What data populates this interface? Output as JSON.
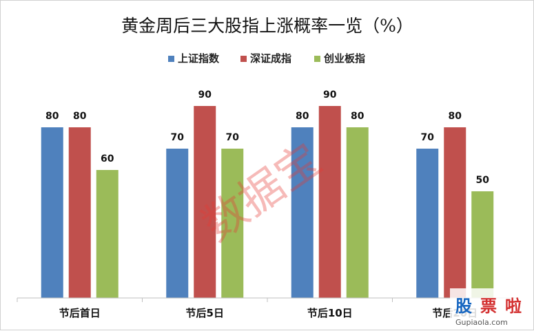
{
  "chart_data": {
    "type": "bar",
    "title": "黄金周后三大股指上涨概率一览（%）",
    "categories": [
      "节后首日",
      "节后5日",
      "节后10日",
      "节后20日"
    ],
    "series": [
      {
        "name": "上证指数",
        "color": "#4f81bd",
        "values": [
          80,
          70,
          80,
          70
        ]
      },
      {
        "name": "深证成指",
        "color": "#c0504d",
        "values": [
          80,
          90,
          90,
          80
        ]
      },
      {
        "name": "创业板指",
        "color": "#9bbb59",
        "values": [
          60,
          70,
          80,
          50
        ]
      }
    ],
    "ylim": [
      0,
      100
    ],
    "grid": false,
    "legend_position": "top-center",
    "data_labels": true
  },
  "watermark": {
    "text": "数据宝",
    "color": "#e53935"
  },
  "logo": {
    "text": "股票啦",
    "url_text": "Gupiaola.com",
    "colors": [
      "#1565c0",
      "#d32f2f",
      "#d32f2f"
    ]
  }
}
